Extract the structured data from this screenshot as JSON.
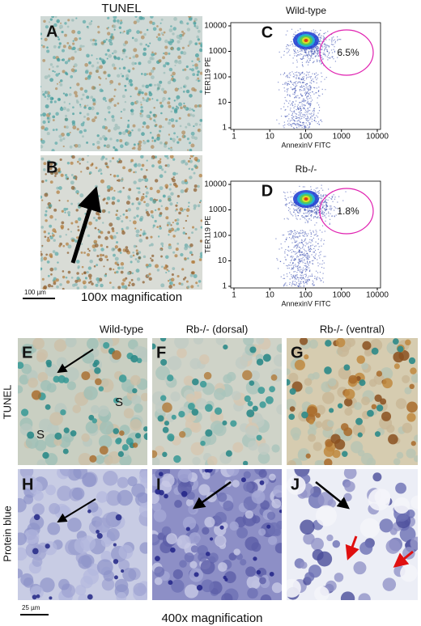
{
  "top_left": {
    "title": "TUNEL",
    "panels": [
      "A",
      "B"
    ],
    "scale_bar": "100 µm",
    "magnification": "100x magnification"
  },
  "flow_plots": [
    {
      "panel": "C",
      "title": "Wild-type",
      "gate": "6.5%",
      "x_label": "AnnexinV FITC",
      "y_label": "TER119 PE",
      "x_ticks": [
        "1",
        "10",
        "100",
        "1000",
        "10000"
      ],
      "y_ticks": [
        "1",
        "10",
        "100",
        "1000",
        "10000"
      ]
    },
    {
      "panel": "D",
      "title": "Rb-/-",
      "gate": "1.8%",
      "x_label": "AnnexinV FITC",
      "y_label": "TER119 PE",
      "x_ticks": [
        "1",
        "10",
        "100",
        "1000",
        "10000"
      ],
      "y_ticks": [
        "1",
        "10",
        "100",
        "1000",
        "10000"
      ]
    }
  ],
  "bottom": {
    "columns": [
      "Wild-type",
      "Rb-/- (dorsal)",
      "Rb-/- (ventral)"
    ],
    "rows": [
      "TUNEL",
      "Protein blue"
    ],
    "panels": [
      "E",
      "F",
      "G",
      "H",
      "I",
      "J"
    ],
    "sinusoid_labels": [
      "S",
      "S"
    ],
    "scale_bar": "25 µm",
    "magnification": "400x magnification"
  }
}
